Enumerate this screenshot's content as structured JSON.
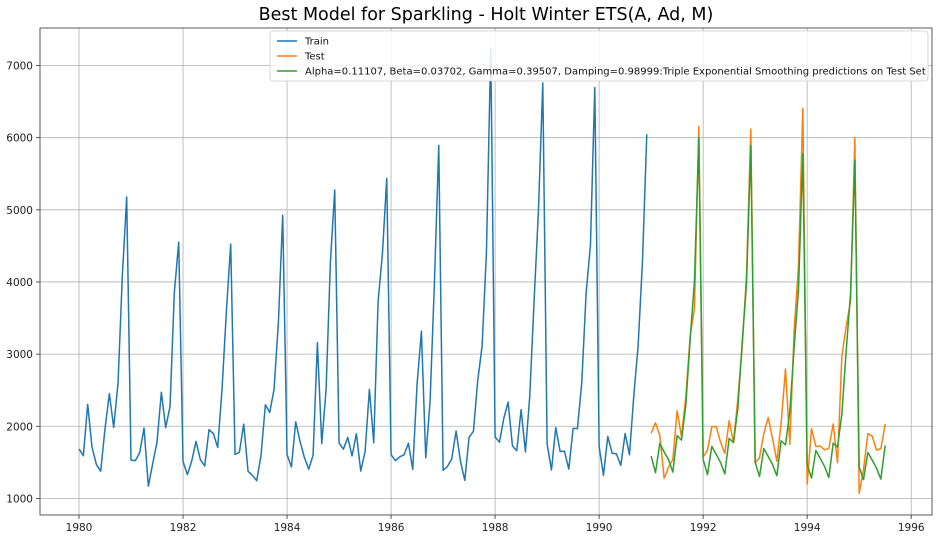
{
  "chart_data": {
    "type": "line",
    "title": "Best Model for Sparkling - Holt Winter ETS(A, Ad, M)",
    "xlabel": "",
    "ylabel": "",
    "xlim": [
      1979.25,
      1996.4
    ],
    "ylim": [
      770,
      7520
    ],
    "x_ticks": [
      1980,
      1982,
      1984,
      1986,
      1988,
      1990,
      1992,
      1994,
      1996
    ],
    "y_ticks": [
      1000,
      2000,
      3000,
      4000,
      5000,
      6000,
      7000
    ],
    "grid": true,
    "legend_position": "top-right",
    "colors": {
      "train": "#1f77b4",
      "test": "#ff7f0e",
      "pred": "#2ca02c"
    },
    "train_start": "1980-01",
    "test_start": "1991-01",
    "series": [
      {
        "name": "Train",
        "key": "train",
        "values": [
          1686,
          1591,
          2304,
          1712,
          1471,
          1377,
          1966,
          2453,
          1984,
          2596,
          4087,
          5179,
          1530,
          1523,
          1633,
          1976,
          1170,
          1480,
          1781,
          2472,
          1981,
          2273,
          3857,
          4551,
          1510,
          1329,
          1518,
          1790,
          1537,
          1449,
          1954,
          1897,
          1706,
          2514,
          3593,
          4524,
          1609,
          1638,
          2030,
          1375,
          1320,
          1245,
          1600,
          2298,
          2191,
          2511,
          3440,
          4923,
          1609,
          1435,
          2061,
          1789,
          1567,
          1404,
          1597,
          3159,
          1759,
          2504,
          4273,
          5274,
          1771,
          1682,
          1846,
          1589,
          1896,
          1379,
          1645,
          2512,
          1771,
          3727,
          4388,
          5434,
          1606,
          1523,
          1577,
          1605,
          1765,
          1403,
          2584,
          3318,
          1562,
          2349,
          3987,
          5891,
          1389,
          1442,
          1548,
          1935,
          1518,
          1250,
          1847,
          1930,
          2638,
          3114,
          4405,
          7242,
          1853,
          1779,
          2108,
          2336,
          1728,
          1661,
          2230,
          1645,
          2421,
          3740,
          4988,
          6757,
          1757,
          1394,
          1982,
          1650,
          1654,
          1406,
          1971,
          1968,
          2608,
          3845,
          4514,
          6694,
          1720,
          1321,
          1859,
          1628,
          1615,
          1457,
          1899,
          1605,
          2424,
          3116,
          4286,
          6047
        ]
      },
      {
        "name": "Test",
        "key": "test",
        "values": [
          1902,
          2049,
          1874,
          1279,
          1432,
          1540,
          2214,
          1857,
          2408,
          3252,
          3627,
          6153,
          1577,
          1667,
          1993,
          1997,
          1783,
          1625,
          2076,
          1773,
          2377,
          3088,
          4096,
          6119,
          1494,
          1564,
          1898,
          2121,
          1831,
          1515,
          2048,
          2795,
          1749,
          3339,
          4227,
          6410,
          1197,
          1968,
          1720,
          1725,
          1674,
          1693,
          2031,
          1495,
          2968,
          3385,
          3729,
          5999,
          1070,
          1402,
          1897,
          1862,
          1670,
          1688,
          2031
        ]
      },
      {
        "name": "Alpha=0.11107, Beta=0.03702, Gamma=0.39507, Damping=0.98999:Triple Exponential Smoothing predictions on Test Set",
        "key": "pred",
        "values": [
          1587,
          1356,
          1764,
          1643,
          1541,
          1365,
          1870,
          1809,
          2291,
          3200,
          4020,
          6000,
          1540,
          1329,
          1722,
          1612,
          1500,
          1339,
          1832,
          1773,
          2246,
          3155,
          3970,
          5890,
          1502,
          1303,
          1692,
          1583,
          1472,
          1314,
          1799,
          1742,
          2203,
          3098,
          3900,
          5780,
          1467,
          1282,
          1665,
          1556,
          1445,
          1290,
          1766,
          1712,
          2165,
          3046,
          3836,
          5690,
          1431,
          1261,
          1638,
          1531,
          1420,
          1268,
          1735
        ]
      }
    ]
  }
}
